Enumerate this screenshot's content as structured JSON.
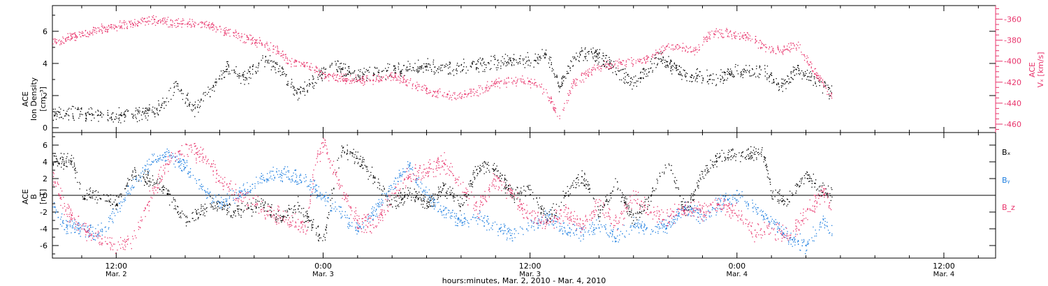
{
  "colors": {
    "black": "#000000",
    "pink": "#e8336b",
    "blue": "#1f7fe0"
  },
  "xaxis": {
    "title": "hours:minutes, Mar.  2, 2010 - Mar.  4, 2010",
    "ticks": [
      {
        "hours": 12,
        "time": "12:00",
        "date": "Mar. 2"
      },
      {
        "hours": 24,
        "time": "0:00",
        "date": "Mar. 3"
      },
      {
        "hours": 36,
        "time": "12:00",
        "date": "Mar. 3"
      },
      {
        "hours": 48,
        "time": "0:00",
        "date": "Mar. 4"
      },
      {
        "hours": 60,
        "time": "12:00",
        "date": "Mar. 4"
      }
    ]
  },
  "chart_data": [
    {
      "type": "scatter",
      "title": "",
      "ylabel_left": [
        "ACE",
        "Ion Density",
        "[cm⁻³]"
      ],
      "ylabel_right": [
        "ACE",
        "Vₓ [km/s]"
      ],
      "xlim": [
        8.3,
        63
      ],
      "ylim": [
        -0.3,
        7.6
      ],
      "ylim_right": [
        -468,
        -347
      ],
      "yticks": [
        0,
        2,
        4,
        6
      ],
      "yticks_right": [
        -460,
        -440,
        -420,
        -400,
        -380,
        -360
      ],
      "grid": false,
      "series": [
        {
          "color": "#000000",
          "axis": "left",
          "knots": [
            [
              8.3,
              1.0
            ],
            [
              10,
              0.9
            ],
            [
              12,
              0.8
            ],
            [
              13.5,
              0.9
            ],
            [
              14.5,
              1.2
            ],
            [
              15.5,
              2.6
            ],
            [
              16.5,
              1.2
            ],
            [
              17.5,
              2.4
            ],
            [
              18.5,
              3.8
            ],
            [
              19.5,
              3.0
            ],
            [
              20.5,
              4.4
            ],
            [
              21.5,
              3.5
            ],
            [
              22.5,
              2.2
            ],
            [
              23.5,
              3.0
            ],
            [
              24.5,
              3.9
            ],
            [
              26,
              3.3
            ],
            [
              28,
              3.6
            ],
            [
              30,
              3.8
            ],
            [
              32,
              3.8
            ],
            [
              33.5,
              4.0
            ],
            [
              35,
              4.2
            ],
            [
              36,
              4.2
            ],
            [
              37,
              4.6
            ],
            [
              37.7,
              2.5
            ],
            [
              38.5,
              4.3
            ],
            [
              39.5,
              4.8
            ],
            [
              41,
              3.6
            ],
            [
              42,
              2.8
            ],
            [
              43.5,
              4.4
            ],
            [
              45,
              3.3
            ],
            [
              46.5,
              3.1
            ],
            [
              48,
              3.5
            ],
            [
              49.5,
              3.6
            ],
            [
              50.5,
              2.6
            ],
            [
              51.5,
              3.6
            ],
            [
              52.5,
              2.9
            ],
            [
              53.5,
              2.2
            ]
          ],
          "scatter": 0.55
        },
        {
          "color": "#e8336b",
          "axis": "right",
          "knots": [
            [
              8.3,
              -382
            ],
            [
              9.5,
              -376
            ],
            [
              11,
              -370
            ],
            [
              12.5,
              -365
            ],
            [
              14,
              -360
            ],
            [
              15.5,
              -364
            ],
            [
              17,
              -364
            ],
            [
              18.5,
              -372
            ],
            [
              19.5,
              -378
            ],
            [
              21,
              -386
            ],
            [
              22,
              -400
            ],
            [
              23,
              -404
            ],
            [
              24,
              -413
            ],
            [
              25,
              -416
            ],
            [
              26.5,
              -418
            ],
            [
              28,
              -414
            ],
            [
              29,
              -420
            ],
            [
              30,
              -428
            ],
            [
              31.5,
              -433
            ],
            [
              33,
              -428
            ],
            [
              34,
              -420
            ],
            [
              35.5,
              -418
            ],
            [
              36.5,
              -422
            ],
            [
              37.3,
              -440
            ],
            [
              37.6,
              -458
            ],
            [
              38.5,
              -420
            ],
            [
              40,
              -405
            ],
            [
              41,
              -402
            ],
            [
              42.5,
              -400
            ],
            [
              44,
              -385
            ],
            [
              45.5,
              -390
            ],
            [
              46.5,
              -373
            ],
            [
              47.5,
              -373
            ],
            [
              48.5,
              -375
            ],
            [
              50,
              -390
            ],
            [
              51.5,
              -385
            ],
            [
              52.5,
              -410
            ],
            [
              53.5,
              -435
            ]
          ],
          "scatter": 5.5
        }
      ]
    },
    {
      "type": "scatter",
      "title": "",
      "ylabel_left": [
        "ACE",
        "B",
        "[nT]"
      ],
      "xlim": [
        8.3,
        63
      ],
      "ylim": [
        -7.5,
        7.5
      ],
      "yticks": [
        -6,
        -4,
        -2,
        0,
        2,
        4,
        6
      ],
      "zero_line": true,
      "grid": false,
      "legend_position": "right",
      "series": [
        {
          "name": "Bₓ",
          "color": "#000000",
          "knots": [
            [
              8.3,
              4.2
            ],
            [
              9.5,
              4.0
            ],
            [
              10,
              0.0
            ],
            [
              11,
              0.0
            ],
            [
              12,
              -1.0
            ],
            [
              12.5,
              1.0
            ],
            [
              13,
              2.5
            ],
            [
              14.5,
              1.5
            ],
            [
              16,
              -3.0
            ],
            [
              17.5,
              -1.0
            ],
            [
              19,
              -2.0
            ],
            [
              20.5,
              -1.0
            ],
            [
              21.5,
              -3.0
            ],
            [
              22.5,
              -1.0
            ],
            [
              23.5,
              -4.0
            ],
            [
              24,
              -5.5
            ],
            [
              25,
              5.5
            ],
            [
              26,
              4.5
            ],
            [
              27,
              2.0
            ],
            [
              28,
              -1.0
            ],
            [
              29,
              0.5
            ],
            [
              30,
              -1.0
            ],
            [
              31,
              1.0
            ],
            [
              32,
              -1.0
            ],
            [
              33,
              3.5
            ],
            [
              34,
              3.0
            ],
            [
              35,
              0.0
            ],
            [
              36,
              1.0
            ],
            [
              37,
              -3.0
            ],
            [
              38,
              0.0
            ],
            [
              39,
              2.5
            ],
            [
              40,
              -2.0
            ],
            [
              41,
              1.5
            ],
            [
              42,
              -3.0
            ],
            [
              43,
              0.0
            ],
            [
              44,
              4.0
            ],
            [
              45,
              -2.0
            ],
            [
              46,
              2.5
            ],
            [
              47,
              4.8
            ],
            [
              48,
              4.8
            ],
            [
              49,
              5.0
            ],
            [
              49.5,
              5.0
            ],
            [
              50,
              0.5
            ],
            [
              51,
              -0.5
            ],
            [
              52,
              2.5
            ],
            [
              53,
              0.5
            ],
            [
              53.5,
              0.0
            ]
          ],
          "scatter": 1.1
        },
        {
          "name": "Bᵧ",
          "color": "#1f7fe0",
          "knots": [
            [
              8.3,
              -1.0
            ],
            [
              9,
              -3.5
            ],
            [
              10,
              -4.0
            ],
            [
              11,
              -4.5
            ],
            [
              12,
              -2.0
            ],
            [
              13,
              1.5
            ],
            [
              14,
              4.0
            ],
            [
              15,
              5.0
            ],
            [
              16,
              3.5
            ],
            [
              17,
              1.0
            ],
            [
              18,
              -1.0
            ],
            [
              19,
              0.0
            ],
            [
              20,
              1.5
            ],
            [
              21,
              2.5
            ],
            [
              22,
              2.5
            ],
            [
              23,
              1.5
            ],
            [
              24,
              0.0
            ],
            [
              25,
              -2.0
            ],
            [
              26,
              -4.0
            ],
            [
              27,
              -2.0
            ],
            [
              28,
              1.5
            ],
            [
              29,
              3.5
            ],
            [
              30,
              0.0
            ],
            [
              31,
              -2.0
            ],
            [
              32,
              -3.0
            ],
            [
              33,
              -2.5
            ],
            [
              34,
              -4.0
            ],
            [
              35,
              -4.5
            ],
            [
              36,
              -3.5
            ],
            [
              37,
              -2.5
            ],
            [
              38,
              -4.0
            ],
            [
              39,
              -4.5
            ],
            [
              40,
              -3.5
            ],
            [
              41,
              -5.0
            ],
            [
              42,
              -3.5
            ],
            [
              43,
              -4.0
            ],
            [
              44,
              -3.5
            ],
            [
              45,
              -1.5
            ],
            [
              46,
              -2.5
            ],
            [
              47,
              -1.0
            ],
            [
              48,
              0.0
            ],
            [
              49,
              -1.5
            ],
            [
              50,
              -3.0
            ],
            [
              51,
              -5.0
            ],
            [
              52,
              -6.0
            ],
            [
              53,
              -3.0
            ],
            [
              53.5,
              -4.5
            ]
          ],
          "scatter": 1.1
        },
        {
          "name": "B_z",
          "color": "#e8336b",
          "knots": [
            [
              8.3,
              2.5
            ],
            [
              9,
              -1.5
            ],
            [
              10,
              -4.0
            ],
            [
              11,
              -5.0
            ],
            [
              12,
              -6.5
            ],
            [
              13,
              -5.0
            ],
            [
              14,
              0.0
            ],
            [
              15,
              4.0
            ],
            [
              16,
              5.5
            ],
            [
              17,
              5.0
            ],
            [
              18,
              2.0
            ],
            [
              19,
              0.0
            ],
            [
              20,
              -1.0
            ],
            [
              21,
              -2.0
            ],
            [
              22,
              -3.0
            ],
            [
              23,
              -4.0
            ],
            [
              23.5,
              3.5
            ],
            [
              24,
              6.5
            ],
            [
              25,
              1.0
            ],
            [
              26,
              -3.0
            ],
            [
              27,
              -3.5
            ],
            [
              28,
              0.0
            ],
            [
              29,
              2.5
            ],
            [
              30,
              3.0
            ],
            [
              31,
              4.0
            ],
            [
              32,
              1.0
            ],
            [
              33,
              -1.5
            ],
            [
              34,
              2.0
            ],
            [
              35,
              0.0
            ],
            [
              36,
              -2.5
            ],
            [
              37,
              -3.0
            ],
            [
              38,
              -2.0
            ],
            [
              39,
              -3.5
            ],
            [
              40,
              -1.0
            ],
            [
              41,
              -3.5
            ],
            [
              42,
              0.0
            ],
            [
              43,
              -2.0
            ],
            [
              44,
              -2.5
            ],
            [
              45,
              -1.5
            ],
            [
              46,
              -2.0
            ],
            [
              47,
              -1.0
            ],
            [
              48,
              -2.0
            ],
            [
              49,
              -4.5
            ],
            [
              50,
              -4.0
            ],
            [
              51,
              -5.0
            ],
            [
              52,
              -2.0
            ],
            [
              53,
              0.5
            ],
            [
              53.5,
              -1.5
            ]
          ],
          "scatter": 1.3
        }
      ]
    }
  ]
}
